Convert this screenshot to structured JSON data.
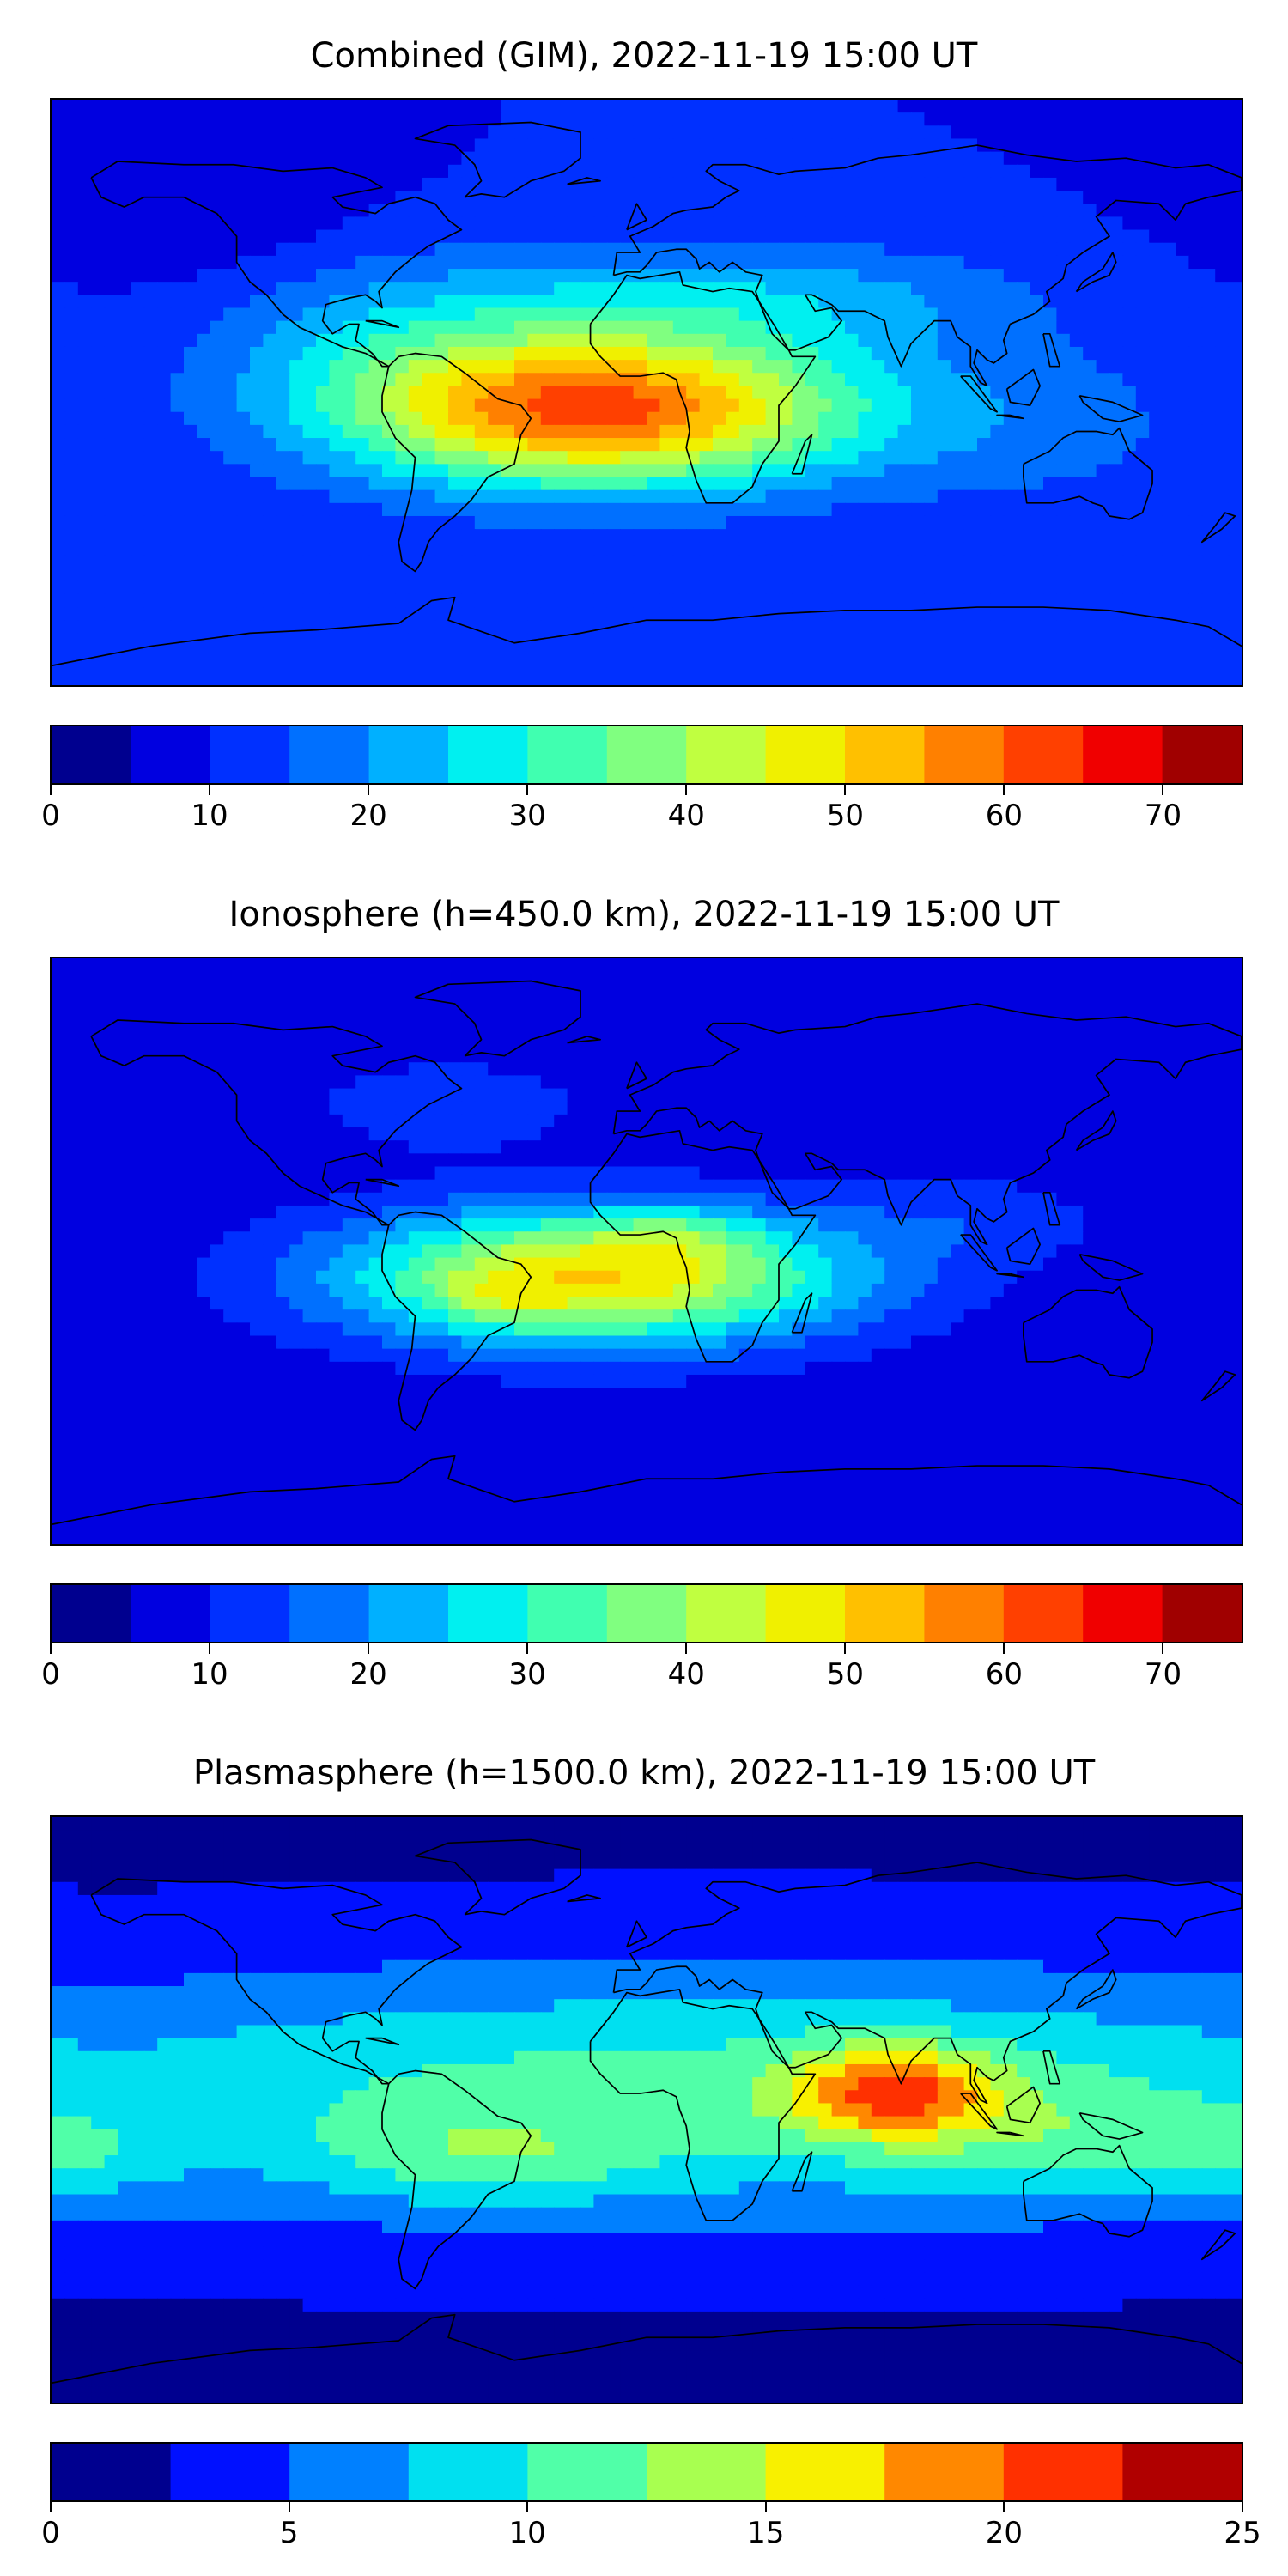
{
  "colormap": [
    "#00008f",
    "#0000e0",
    "#0030ff",
    "#0070ff",
    "#00b0ff",
    "#00f0f0",
    "#40ffb0",
    "#80ff80",
    "#c0ff40",
    "#f0f000",
    "#ffc000",
    "#ff8000",
    "#ff4000",
    "#f00000",
    "#a00000"
  ],
  "colormap10": [
    "#00008f",
    "#0010ff",
    "#0080ff",
    "#00e0f0",
    "#50ffa8",
    "#a8ff50",
    "#f8f000",
    "#ff8800",
    "#ff3000",
    "#b00000"
  ],
  "chart_data": [
    {
      "type": "heatmap",
      "title": "Combined (GIM), 2022-11-19 15:00 UT",
      "colorbar": {
        "range": [
          0,
          75
        ],
        "levels": [
          0,
          5,
          10,
          15,
          20,
          25,
          30,
          35,
          40,
          45,
          50,
          55,
          60,
          65,
          70,
          75
        ],
        "tick_labels": [
          "0",
          "10",
          "20",
          "30",
          "40",
          "50",
          "60",
          "70"
        ]
      },
      "field": {
        "background": 10,
        "features": [
          {
            "lon": -15,
            "lat": -5,
            "amp": 52,
            "slon": 55,
            "slat": 17
          },
          {
            "lon": 30,
            "lat": 30,
            "amp": 12,
            "slon": 60,
            "slat": 12
          },
          {
            "lon": -80,
            "lat": 20,
            "amp": 8,
            "slon": 40,
            "slat": 20
          },
          {
            "lon": 120,
            "lat": -10,
            "amp": 6,
            "slon": 40,
            "slat": 20
          },
          {
            "lon": -130,
            "lat": 50,
            "amp": -4,
            "slon": 40,
            "slat": 15
          }
        ]
      }
    },
    {
      "type": "heatmap",
      "title": "Ionosphere  (h=450.0 km), 2022-11-19 15:00 UT",
      "colorbar": {
        "range": [
          0,
          75
        ],
        "levels": [
          0,
          5,
          10,
          15,
          20,
          25,
          30,
          35,
          40,
          45,
          50,
          55,
          60,
          65,
          70,
          75
        ],
        "tick_labels": [
          "0",
          "10",
          "20",
          "30",
          "40",
          "50",
          "60",
          "70"
        ]
      },
      "field": {
        "background": 6,
        "features": [
          {
            "lon": -15,
            "lat": -8,
            "amp": 44,
            "slon": 55,
            "slat": 15
          },
          {
            "lon": 10,
            "lat": 5,
            "amp": 8,
            "slon": 15,
            "slat": 6
          },
          {
            "lon": -45,
            "lat": -15,
            "amp": 6,
            "slon": 12,
            "slat": 6
          },
          {
            "lon": -60,
            "lat": 45,
            "amp": 8,
            "slon": 30,
            "slat": 10
          },
          {
            "lon": 100,
            "lat": 10,
            "amp": 6,
            "slon": 30,
            "slat": 10
          }
        ]
      }
    },
    {
      "type": "heatmap",
      "title": "Plasmasphere (h=1500.0 km), 2022-11-19 15:00 UT",
      "colorbar": {
        "range": [
          0,
          25
        ],
        "levels": [
          0,
          2.5,
          5,
          7.5,
          10,
          12.5,
          15,
          17.5,
          20,
          22.5,
          25
        ],
        "tick_labels": [
          "0",
          "5",
          "10",
          "15",
          "20",
          "25"
        ]
      },
      "field": {
        "background": 2,
        "features": [
          {
            "lon": 20,
            "lat": 5,
            "amp": 9,
            "slon": 200,
            "slat": 28
          },
          {
            "lon": 75,
            "lat": 5,
            "amp": 11,
            "slon": 22,
            "slat": 10
          },
          {
            "lon": -50,
            "lat": -15,
            "amp": 4,
            "slon": 35,
            "slat": 10
          },
          {
            "lon": 130,
            "lat": -10,
            "amp": 3,
            "slon": 35,
            "slat": 12
          },
          {
            "lon": -170,
            "lat": -15,
            "amp": 3,
            "slon": 20,
            "slat": 10
          }
        ]
      }
    }
  ]
}
